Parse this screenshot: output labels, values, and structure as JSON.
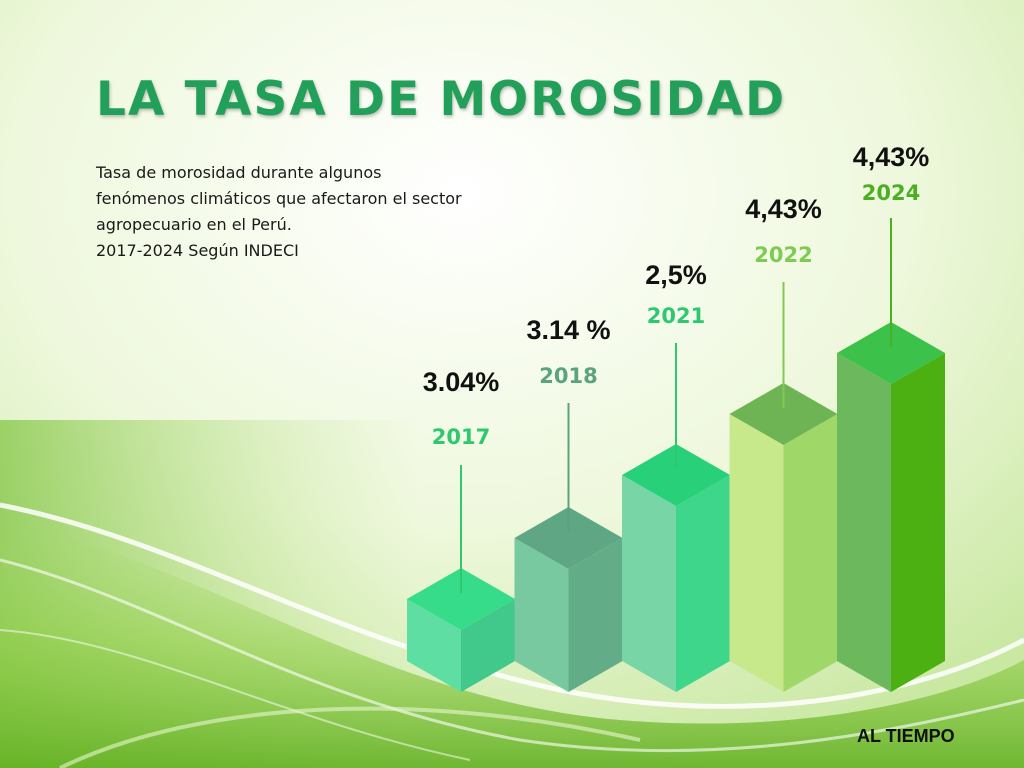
{
  "title": "LA TASA DE MOROSIDAD",
  "subtitle_lines": [
    "Tasa de morosidad durante algunos",
    "fenómenos climáticos que afectaron el sector",
    "agropecuario en el Perú.",
    "2017-2024 Según INDECI"
  ],
  "source": "AL TIEMPO",
  "chart_data": {
    "type": "bar",
    "categories": [
      "2017",
      "2018",
      "2021",
      "2022",
      "2024"
    ],
    "values": [
      3.04,
      3.14,
      2.5,
      4.43,
      4.43
    ],
    "value_labels": [
      "3.04%",
      "3.14 %",
      "2,5%",
      "4,43%",
      "4,43%"
    ],
    "colors": [
      {
        "top": "#36dc8a",
        "front": "#5edea2",
        "side": "#40c98a",
        "label": "#2ec86f"
      },
      {
        "top": "#5ea684",
        "front": "#79c9a0",
        "side": "#62ad88",
        "label": "#5aa37e"
      },
      {
        "top": "#28d07a",
        "front": "#78d6a6",
        "side": "#3ed68a",
        "label": "#2ec86f"
      },
      {
        "top": "#6fb454",
        "front": "#c7e98c",
        "side": "#9fd868",
        "label": "#7ecb52"
      },
      {
        "top": "#3cc24a",
        "front": "#6cb85c",
        "side": "#4caf12",
        "label": "#4ab021"
      }
    ]
  }
}
